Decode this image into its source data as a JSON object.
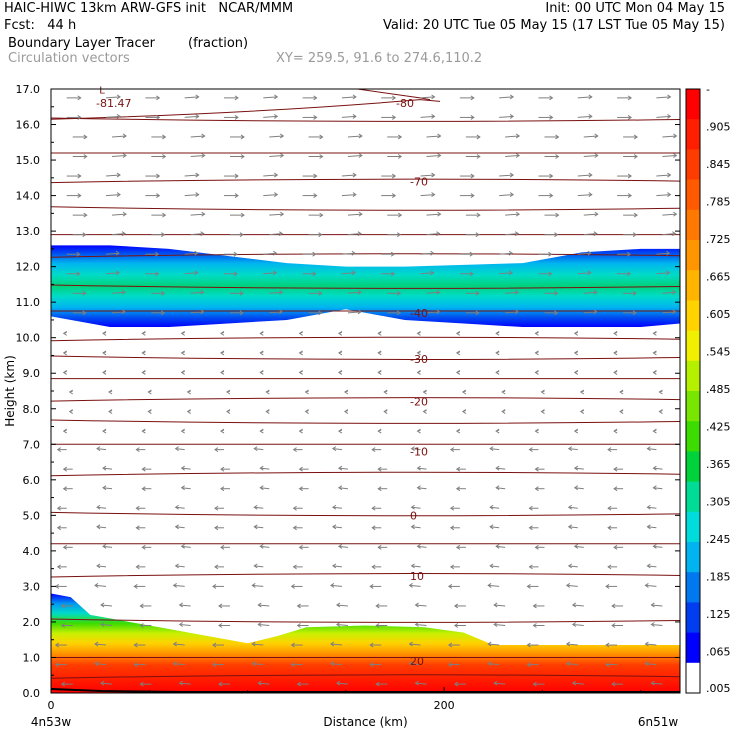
{
  "header": {
    "model_line": "HAIC-HIWC 13km ARW-GFS init   NCAR/MMM",
    "init_line": "Init: 00 UTC Mon 04 May 15",
    "fcst_line": "Fcst:   44 h",
    "valid_line": "Valid: 20 UTC Tue 05 May 15 (17 LST Tue 05 May 15)",
    "field_line": "Boundary Layer Tracer        (fraction)",
    "vector_line": "Circulation vectors",
    "xy_line": "XY= 259.5, 91.6 to 274.6,110.2"
  },
  "chart_data": {
    "type": "heatmap",
    "ylabel": "Height (km)",
    "xlabel": "Distance (km)",
    "xlim": [
      0,
      320
    ],
    "ylim": [
      0,
      17
    ],
    "x_ticks": [
      "0",
      "200"
    ],
    "x_end_labels": [
      "4n53w",
      "6n51w"
    ],
    "y_ticks": [
      "0.0",
      "1.0",
      "2.0",
      "3.0",
      "4.0",
      "5.0",
      "6.0",
      "7.0",
      "8.0",
      "9.0",
      "10.0",
      "11.0",
      "12.0",
      "13.0",
      "14.0",
      "15.0",
      "16.0",
      "17.0"
    ],
    "colorbar": {
      "labels": [
        "-",
        ".905",
        ".845",
        ".785",
        ".725",
        ".665",
        ".605",
        ".545",
        ".485",
        ".425",
        ".365",
        ".305",
        ".245",
        ".185",
        ".125",
        ".065",
        ".005"
      ],
      "colors": [
        "#ff0000",
        "#ff1e00",
        "#ff3c00",
        "#ff5a00",
        "#ff7800",
        "#ff9600",
        "#ffb400",
        "#ffd200",
        "#f0f000",
        "#b4f000",
        "#78e600",
        "#3cdc00",
        "#00d23c",
        "#00dc96",
        "#00dcdc",
        "#00b4f0",
        "#0078f0",
        "#003cf0",
        "#0000ff",
        "#ffffff"
      ]
    },
    "contours": [
      {
        "label": "-81.47",
        "km": 16.6
      },
      {
        "label": "-80",
        "km": 16.6
      },
      {
        "label": "-70",
        "km": 14.4
      },
      {
        "label": "-40",
        "km": 10.7
      },
      {
        "label": "-30",
        "km": 9.4
      },
      {
        "label": "-20",
        "km": 8.2
      },
      {
        "label": "-10",
        "km": 6.8
      },
      {
        "label": "0",
        "km": 5.0
      },
      {
        "label": "10",
        "km": 3.3
      },
      {
        "label": "20",
        "km": 0.9
      }
    ],
    "upper_layer": {
      "x": [
        0,
        30,
        60,
        90,
        120,
        150,
        180,
        210,
        240,
        270,
        300,
        320
      ],
      "top": [
        12.6,
        12.6,
        12.5,
        12.3,
        12.1,
        12.0,
        12.0,
        12.05,
        12.1,
        12.4,
        12.5,
        12.5
      ],
      "bottom": [
        10.6,
        10.3,
        10.3,
        10.4,
        10.5,
        10.8,
        10.5,
        10.4,
        10.3,
        10.3,
        10.3,
        10.4
      ]
    },
    "lower_layer": {
      "x": [
        0,
        10,
        20,
        40,
        60,
        80,
        100,
        115,
        130,
        160,
        190,
        210,
        225,
        250,
        280,
        300,
        320
      ],
      "top": [
        2.8,
        2.7,
        2.2,
        2.0,
        1.8,
        1.6,
        1.4,
        1.6,
        1.85,
        1.9,
        1.85,
        1.7,
        1.35,
        1.35,
        1.35,
        1.35,
        1.35
      ]
    }
  }
}
